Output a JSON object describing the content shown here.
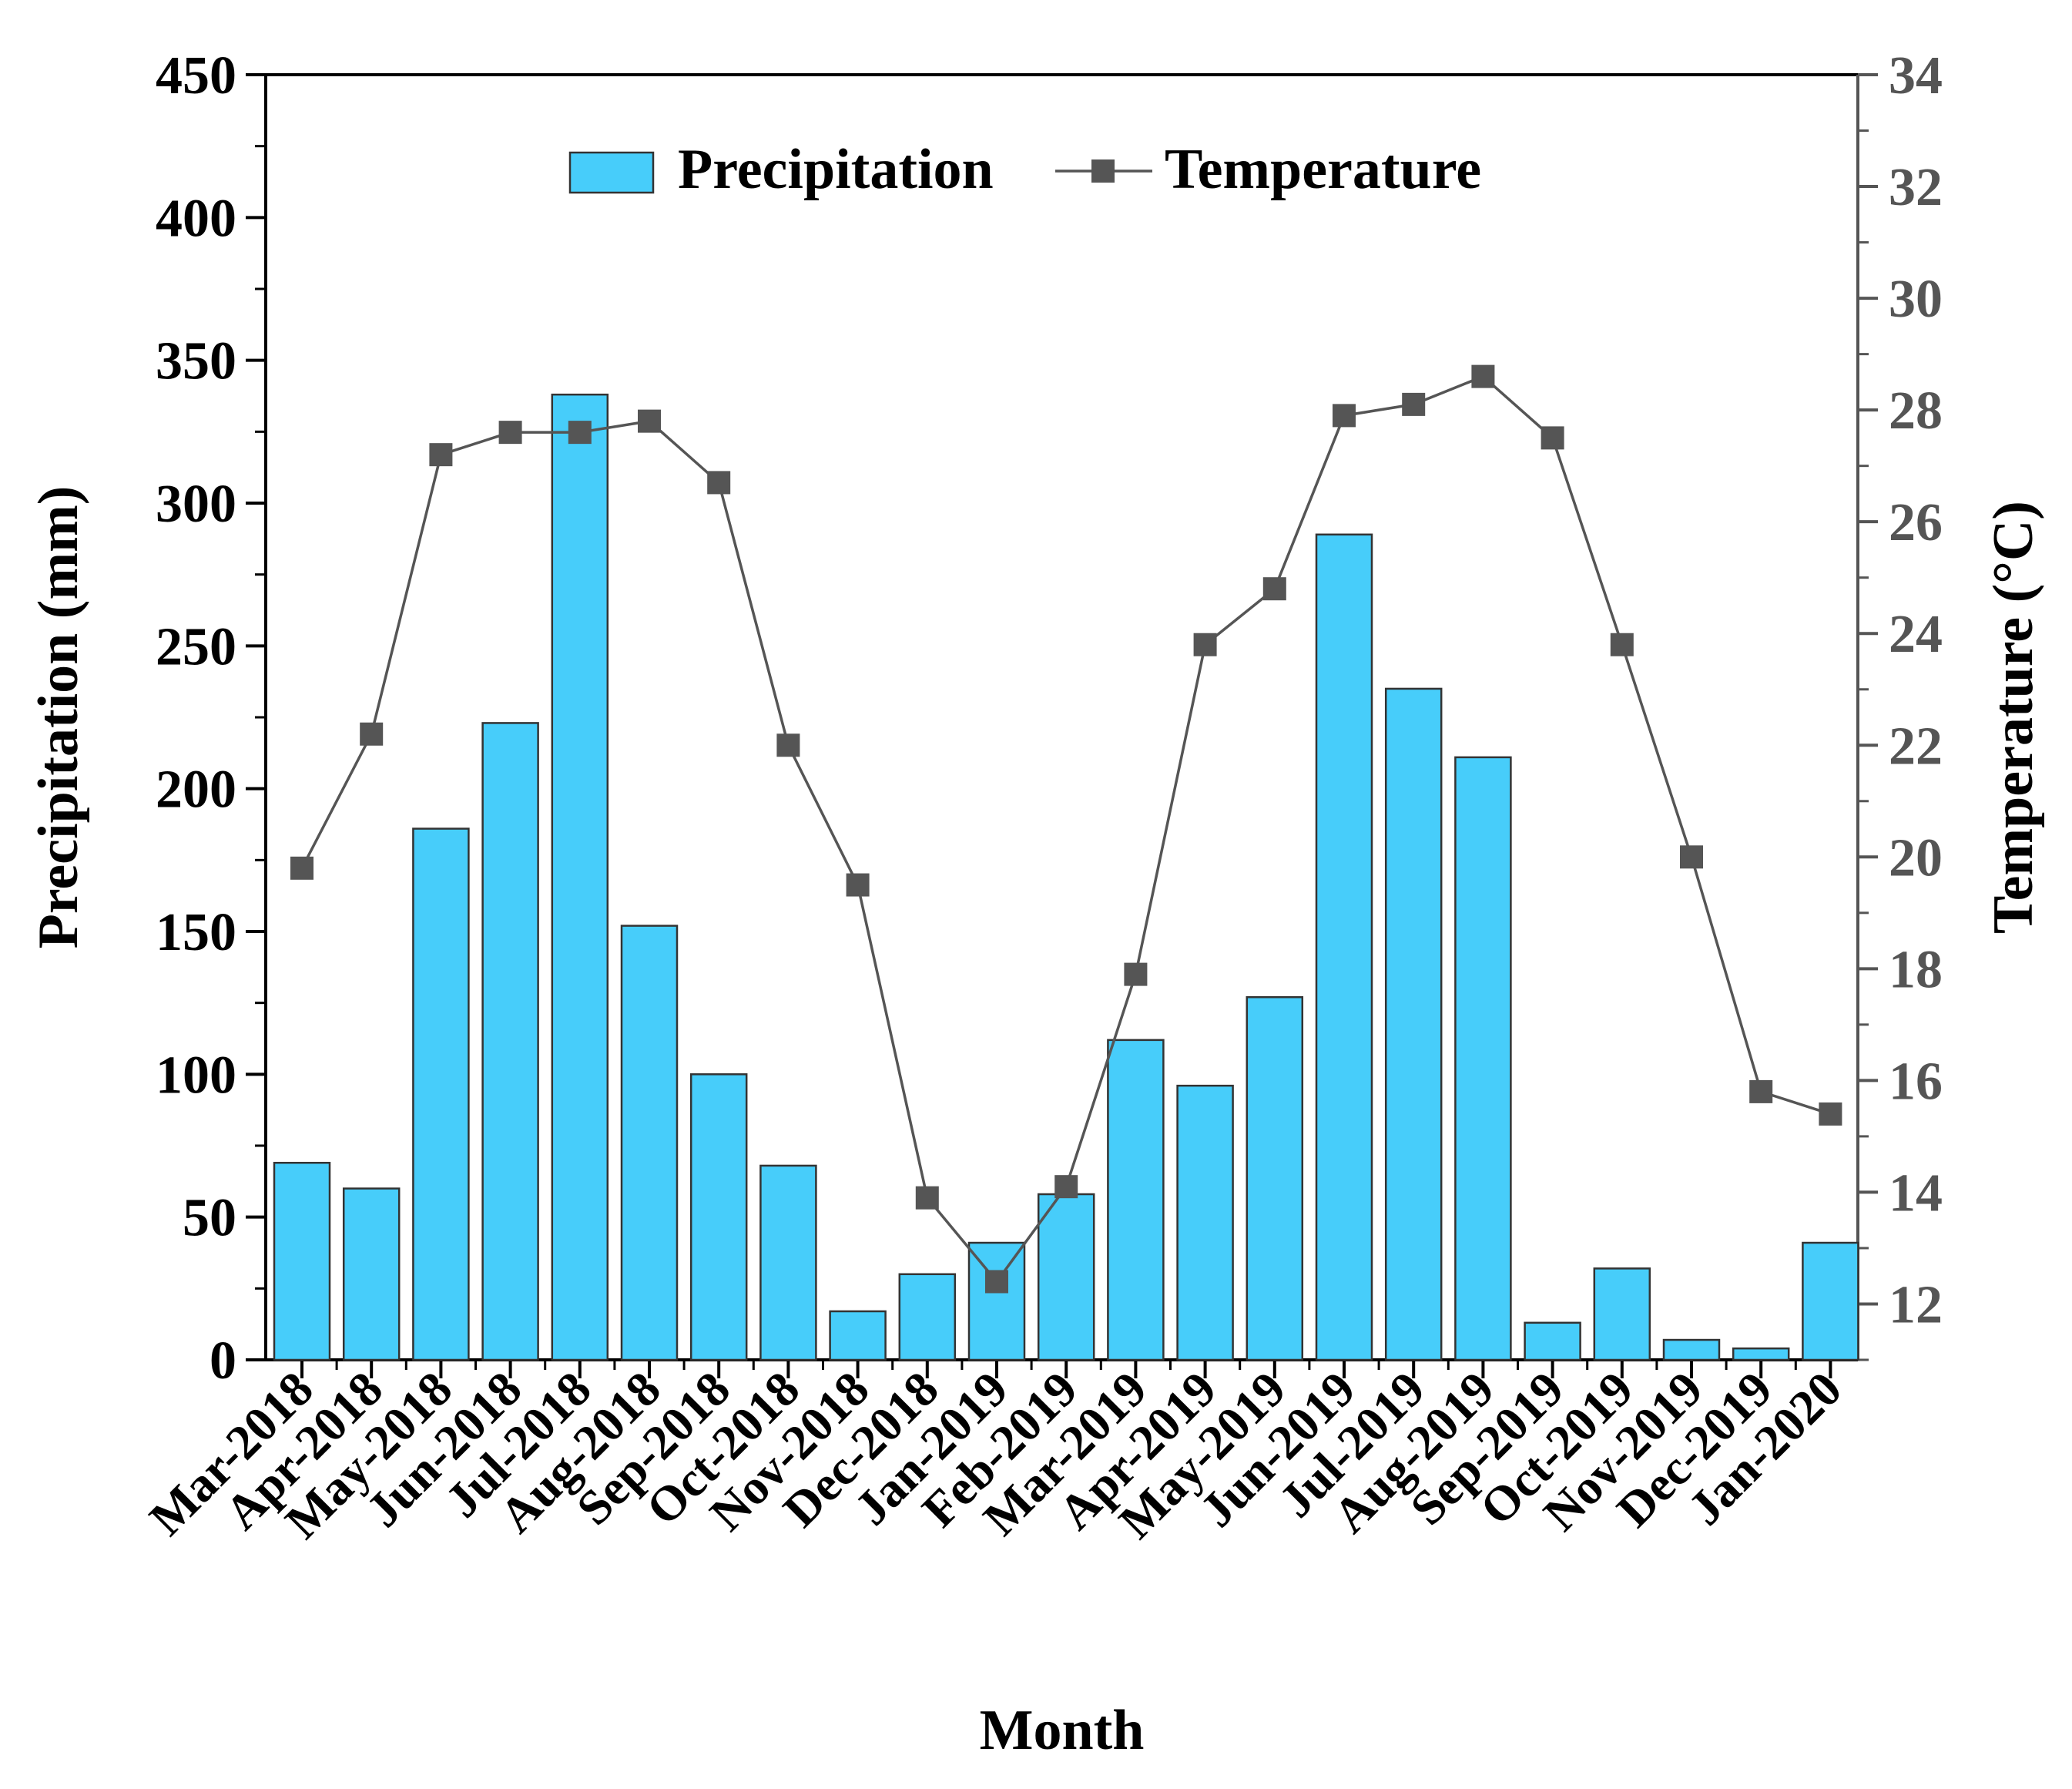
{
  "chart_data": {
    "type": "bar+line",
    "xlabel": "Month",
    "categories": [
      "Mar-2018",
      "Apr-2018",
      "May-2018",
      "Jun-2018",
      "Jul-2018",
      "Aug-2018",
      "Sep-2018",
      "Oct-2018",
      "Nov-2018",
      "Dec-2018",
      "Jan-2019",
      "Feb-2019",
      "Mar-2019",
      "Apr-2019",
      "May-2019",
      "Jun-2019",
      "Jul-2019",
      "Aug-2019",
      "Sep-2019",
      "Oct-2019",
      "Nov-2019",
      "Dec-2019",
      "Jan-2020"
    ],
    "series": [
      {
        "name": "Precipitation",
        "kind": "bar",
        "axis": "left",
        "color": "#47cdfa",
        "edge_color": "#333333",
        "values": [
          69,
          60,
          186,
          223,
          338,
          152,
          100,
          68,
          17,
          30,
          41,
          58,
          112,
          96,
          127,
          289,
          235,
          211,
          13,
          32,
          7,
          4,
          41
        ]
      },
      {
        "name": "Temperature",
        "kind": "line",
        "axis": "right",
        "color": "#555555",
        "values": [
          19.8,
          22.2,
          27.2,
          27.6,
          27.6,
          27.8,
          26.7,
          22.0,
          19.5,
          13.9,
          12.4,
          14.1,
          17.9,
          23.8,
          24.8,
          27.9,
          28.1,
          28.6,
          27.5,
          23.8,
          20.0,
          15.8,
          15.4
        ]
      }
    ],
    "y_left": {
      "label": "Precipitation (mm)",
      "range": [
        0,
        450
      ],
      "ticks": [
        "0",
        "50",
        "100",
        "150",
        "200",
        "250",
        "300",
        "350",
        "400",
        "450"
      ]
    },
    "y_right": {
      "label": "Temperature (°C)",
      "range": [
        11,
        34
      ],
      "ticks": [
        "12",
        "14",
        "16",
        "18",
        "20",
        "22",
        "24",
        "26",
        "28",
        "30",
        "32",
        "34"
      ]
    },
    "legend": {
      "position": "top-center",
      "items": [
        "Precipitation",
        "Temperature"
      ]
    },
    "grid": false
  }
}
